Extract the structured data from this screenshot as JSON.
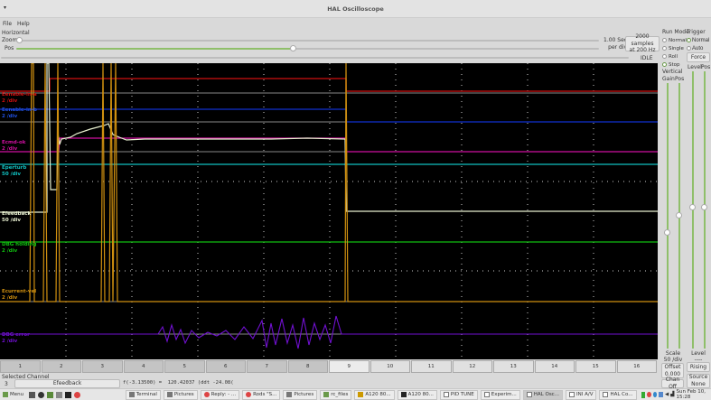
{
  "window": {
    "title": "HAL Oscilloscope"
  },
  "menu": {
    "file": "File",
    "help": "Help"
  },
  "horizontal": {
    "section": "Horizontal",
    "zoom_label": "Zoom",
    "pos_label": "Pos",
    "zoom_value": 0,
    "pos_value": 0.7,
    "time_per_div": "1.00 Sec",
    "per_div": "per div",
    "samples": "2000 samples",
    "rate": "at 200 Hz",
    "status": "IDLE"
  },
  "run_mode": {
    "title": "Run Mode",
    "options": [
      "Normal",
      "Single",
      "Roll",
      "Stop"
    ],
    "selected": "Stop"
  },
  "trigger": {
    "title": "Trigger",
    "options": [
      "Normal",
      "Auto"
    ],
    "selected": "Normal",
    "force": "Force",
    "level_label": "Level",
    "pos_label": "Pos",
    "level_value": "----",
    "edge": "Rising",
    "source_label": "Source",
    "source_value": "None"
  },
  "vertical": {
    "title": "Vertical",
    "gain_label": "Gain",
    "pos_label": "Pos",
    "scale_label": "Scale",
    "scale_value": "50 /div",
    "offset_label": "Offset",
    "offset_value": "0.000",
    "chan_off": "Chan Off"
  },
  "channels": [
    {
      "name": "Eenable-in-a",
      "scale": "2 /div",
      "color": "#d01010"
    },
    {
      "name": "Eenable-in-b",
      "scale": "2 /div",
      "color": "#1030d0"
    },
    {
      "name": "Ecmd-ok",
      "scale": "2 /div",
      "color": "#d010a0"
    },
    {
      "name": "Eperturb",
      "scale": "50 /div",
      "color": "#10c0c0"
    },
    {
      "name": "Efeedback",
      "scale": "50 /div",
      "color": "#e8f0d0"
    },
    {
      "name": "DBG holding",
      "scale": "2 /div",
      "color": "#10c010"
    },
    {
      "name": "Ecurrent-vel",
      "scale": "2 /div",
      "color": "#d09010"
    },
    {
      "name": "DBG error",
      "scale": "2 /div",
      "color": "#7010d0"
    }
  ],
  "channel_buttons": [
    "1",
    "2",
    "3",
    "4",
    "5",
    "6",
    "7",
    "8",
    "9",
    "10",
    "11",
    "12",
    "13",
    "14",
    "15",
    "16"
  ],
  "selected_channel": {
    "label": "Selected Channel",
    "number": "3",
    "name": "Efeedback",
    "readout": "f(-3.13500) =  120.42037 (ddt -24.08("
  },
  "taskbar": {
    "menu": "Menu",
    "tasks": [
      "Terminal",
      "Pictures",
      "Reply: - ...",
      "Rods \"S...",
      "Pictures",
      "rc_files",
      "A120 80...",
      "A120 80...",
      "PID TUNE",
      "Experim...",
      "HAL Osc...",
      "INI A/V",
      "HAL Co..."
    ],
    "active_task": "HAL Osc...",
    "clock": "Sun Feb 10, 15:28"
  }
}
